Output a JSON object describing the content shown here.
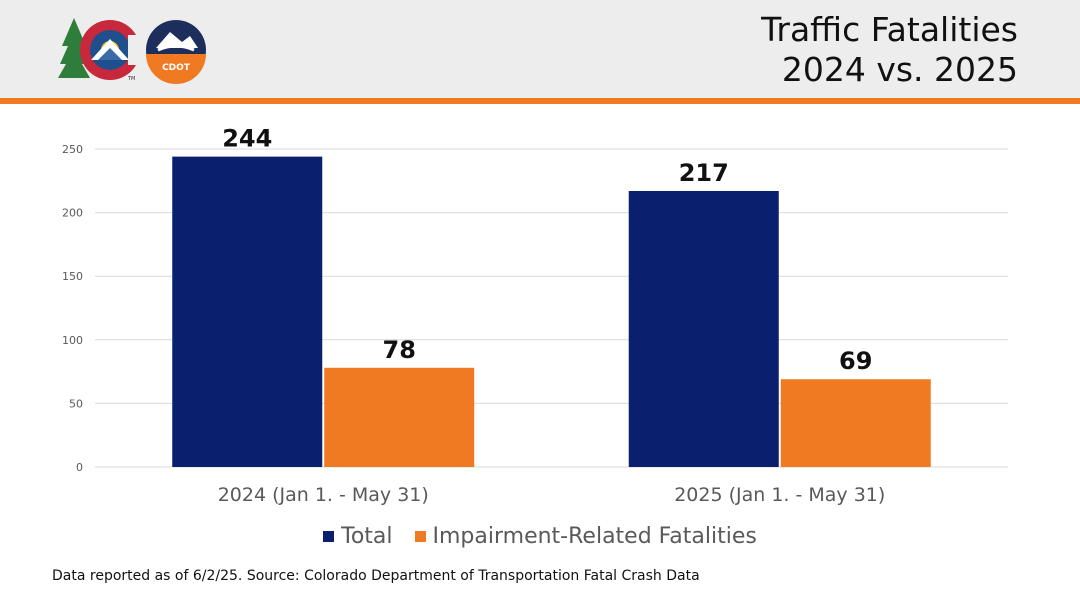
{
  "header": {
    "title_line1": "Traffic Fatalities",
    "title_line2": "2024 vs. 2025",
    "accent_color": "#ef7a22",
    "logos": [
      {
        "name": "colorado-state-logo",
        "text": "TM"
      },
      {
        "name": "cdot-logo",
        "text": "CDOT"
      }
    ]
  },
  "chart_data": {
    "type": "bar",
    "categories": [
      "2024 (Jan 1. - May 31)",
      "2025 (Jan 1. - May 31)"
    ],
    "series": [
      {
        "name": "Total",
        "values": [
          244,
          217
        ],
        "color": "#0a1f6e"
      },
      {
        "name": "Impairment-Related Fatalities",
        "values": [
          78,
          69
        ],
        "color": "#ef7a22"
      }
    ],
    "yticks": [
      0,
      50,
      100,
      150,
      200,
      250
    ],
    "ylim": [
      0,
      250
    ],
    "grid": true,
    "legend_position": "bottom",
    "data_labels": true
  },
  "footnote": "Data reported as of 6/2/25. Source: Colorado Department of Transportation Fatal Crash Data"
}
